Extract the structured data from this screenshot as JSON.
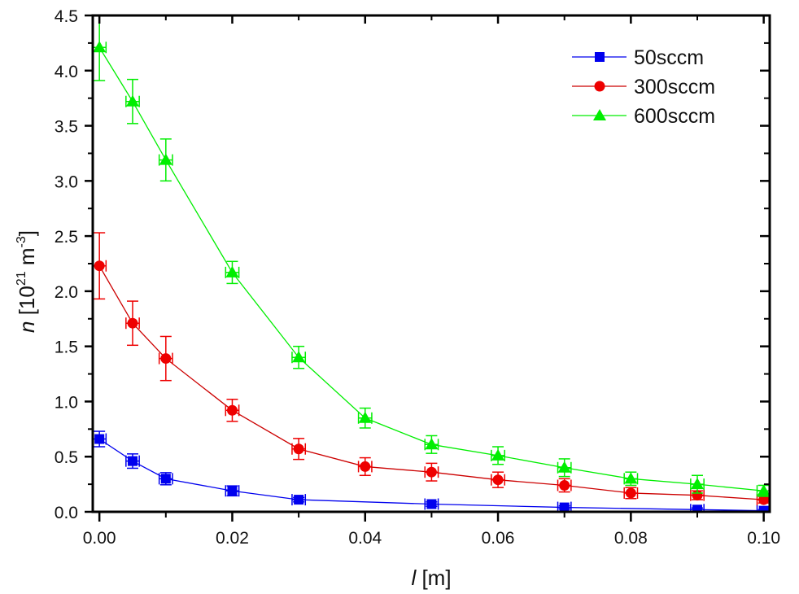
{
  "chart_data": {
    "type": "line",
    "title": "",
    "xlabel": {
      "var": "l",
      "unit": " [m]"
    },
    "ylabel": {
      "var": "n",
      "text_a": " [10",
      "sup_a": "21",
      "text_b": " m",
      "sup_b": "-3",
      "text_c": "]"
    },
    "xlim": [
      -0.001,
      0.1009
    ],
    "ylim": [
      0,
      4.5
    ],
    "x_ticks": [
      0.0,
      0.02,
      0.04,
      0.06,
      0.08,
      0.1
    ],
    "x_tick_labels": [
      "0.00",
      "0.02",
      "0.04",
      "0.06",
      "0.08",
      "0.10"
    ],
    "x_minor_ticks": [
      0.01,
      0.03,
      0.05,
      0.07,
      0.09
    ],
    "y_ticks": [
      0,
      0.5,
      1.0,
      1.5,
      2.0,
      2.5,
      3.0,
      3.5,
      4.0,
      4.5
    ],
    "y_tick_labels": [
      "0.0",
      "0.5",
      "1.0",
      "1.5",
      "2.0",
      "2.5",
      "3.0",
      "3.5",
      "4.0",
      "4.5"
    ],
    "y_minor_ticks": [
      0.25,
      0.75,
      1.25,
      1.75,
      2.25,
      2.75,
      3.25,
      3.75,
      4.25
    ],
    "grid": false,
    "legend_position": "top-right",
    "x": [
      0.0,
      0.005,
      0.01,
      0.02,
      0.03,
      0.04,
      0.05,
      0.06,
      0.07,
      0.08,
      0.09,
      0.1
    ],
    "x_error": 0.001,
    "series": [
      {
        "name": "50sccm",
        "color": "#0000ee",
        "marker": "square",
        "x": [
          0.0,
          0.005,
          0.01,
          0.02,
          0.03,
          0.05,
          0.07,
          0.09,
          0.1
        ],
        "values": [
          0.66,
          0.46,
          0.3,
          0.19,
          0.11,
          0.07,
          0.04,
          0.02,
          0.01
        ],
        "errors": [
          0.07,
          0.065,
          0.055,
          0.045,
          0.02,
          0.02,
          0.015,
          0.015,
          0.01
        ]
      },
      {
        "name": "300sccm",
        "color": "#ee0000",
        "line_color": "#cc0000",
        "marker": "circle",
        "x": [
          0.0,
          0.005,
          0.01,
          0.02,
          0.03,
          0.04,
          0.05,
          0.06,
          0.07,
          0.08,
          0.09,
          0.1
        ],
        "values": [
          2.23,
          1.71,
          1.39,
          0.92,
          0.57,
          0.41,
          0.36,
          0.29,
          0.24,
          0.17,
          0.15,
          0.11
        ],
        "errors": [
          0.3,
          0.2,
          0.2,
          0.1,
          0.095,
          0.08,
          0.08,
          0.07,
          0.06,
          0.05,
          0.04,
          0.03
        ]
      },
      {
        "name": "600sccm",
        "color": "#00ee00",
        "marker": "triangle",
        "x": [
          0.0,
          0.005,
          0.01,
          0.02,
          0.03,
          0.04,
          0.05,
          0.06,
          0.07,
          0.08,
          0.09,
          0.1
        ],
        "values": [
          4.21,
          3.72,
          3.19,
          2.17,
          1.4,
          0.85,
          0.61,
          0.51,
          0.4,
          0.3,
          0.25,
          0.19
        ],
        "errors": [
          0.3,
          0.2,
          0.19,
          0.1,
          0.1,
          0.09,
          0.08,
          0.08,
          0.08,
          0.06,
          0.08,
          0.05
        ]
      }
    ]
  }
}
